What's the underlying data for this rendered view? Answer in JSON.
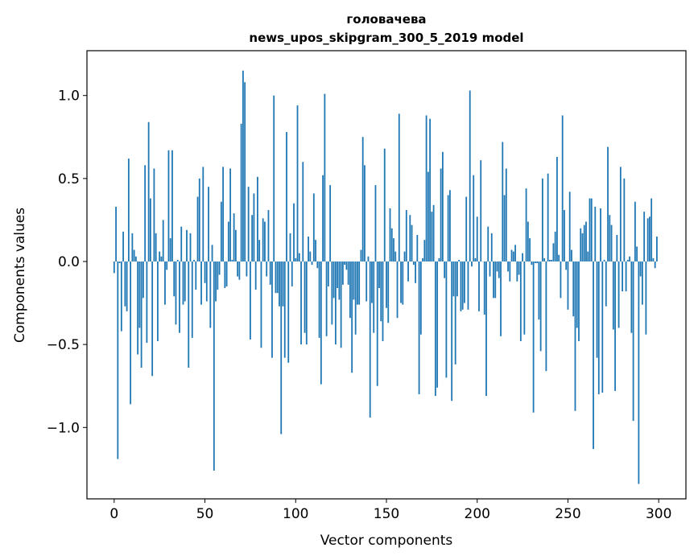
{
  "chart_data": {
    "type": "bar",
    "title_line1": "головачева",
    "title_line2": "news_upos_skipgram_300_5_2019 model",
    "xlabel": "Vector components",
    "ylabel": "Components values",
    "xlim": [
      -15,
      315
    ],
    "ylim": [
      -1.43,
      1.27
    ],
    "xticks": [
      0,
      50,
      100,
      150,
      200,
      250,
      300
    ],
    "xtick_labels": [
      "0",
      "50",
      "100",
      "150",
      "200",
      "250",
      "300"
    ],
    "yticks": [
      -1.0,
      -0.5,
      0.0,
      0.5,
      1.0
    ],
    "ytick_labels": [
      "−1.0",
      "−0.5",
      "0.0",
      "0.5",
      "1.0"
    ],
    "grid": false,
    "bar_color": "#1f77b4",
    "values": [
      -0.07,
      0.33,
      -1.19,
      -0.01,
      -0.42,
      0.18,
      -0.27,
      -0.3,
      0.62,
      -0.86,
      0.17,
      0.07,
      0.03,
      -0.56,
      -0.4,
      -0.64,
      -0.22,
      0.58,
      -0.49,
      0.84,
      0.38,
      -0.69,
      0.56,
      0.17,
      -0.48,
      0.06,
      0.03,
      0.25,
      -0.26,
      -0.05,
      0.67,
      0.14,
      0.67,
      -0.21,
      -0.38,
      0.01,
      -0.43,
      0.21,
      -0.26,
      -0.24,
      0.19,
      -0.64,
      0.17,
      -0.46,
      0.01,
      -0.17,
      0.39,
      0.5,
      -0.26,
      0.57,
      -0.13,
      -0.24,
      0.45,
      -0.4,
      0.1,
      -1.26,
      -0.24,
      -0.17,
      -0.08,
      0.36,
      0.57,
      -0.16,
      -0.15,
      0.24,
      0.56,
      0.01,
      0.29,
      0.19,
      -0.09,
      -0.11,
      0.83,
      1.15,
      1.08,
      -0.09,
      0.45,
      -0.47,
      0.28,
      0.41,
      -0.17,
      0.51,
      0.13,
      -0.52,
      0.26,
      0.24,
      -0.09,
      0.31,
      -0.14,
      -0.58,
      1.0,
      -0.19,
      -0.19,
      -0.27,
      -1.04,
      -0.27,
      -0.58,
      0.78,
      -0.61,
      0.17,
      -0.15,
      0.35,
      0.02,
      0.94,
      0.05,
      -0.5,
      0.6,
      -0.43,
      -0.5,
      0.15,
      0.06,
      -0.02,
      0.41,
      0.13,
      -0.04,
      -0.46,
      -0.74,
      0.52,
      1.01,
      -0.45,
      -0.15,
      0.46,
      -0.38,
      -0.22,
      -0.5,
      -0.16,
      -0.23,
      -0.52,
      -0.14,
      -0.02,
      -0.05,
      -0.14,
      -0.34,
      -0.67,
      -0.23,
      -0.44,
      -0.26,
      -0.26,
      0.07,
      0.75,
      0.58,
      -0.24,
      0.03,
      -0.94,
      -0.25,
      -0.43,
      0.46,
      -0.75,
      -0.16,
      -0.36,
      -0.48,
      0.68,
      -0.28,
      -0.37,
      0.32,
      0.2,
      0.14,
      0.06,
      -0.34,
      0.89,
      -0.25,
      -0.26,
      0.06,
      0.31,
      -0.12,
      0.28,
      0.22,
      -0.02,
      -0.13,
      0.16,
      -0.8,
      -0.44,
      0.02,
      0.13,
      0.88,
      0.54,
      0.86,
      0.3,
      0.34,
      -0.81,
      -0.76,
      0.02,
      0.56,
      0.66,
      -0.1,
      -0.7,
      0.4,
      0.43,
      -0.84,
      -0.21,
      -0.62,
      -0.21,
      0.01,
      -0.3,
      -0.29,
      -0.25,
      0.39,
      -0.29,
      1.03,
      -0.03,
      0.52,
      0.02,
      0.27,
      -0.3,
      0.61,
      0.0,
      -0.32,
      -0.81,
      0.21,
      -0.09,
      0.17,
      -0.22,
      -0.22,
      -0.06,
      -0.1,
      -0.45,
      0.72,
      0.4,
      0.56,
      -0.06,
      -0.12,
      0.07,
      0.06,
      0.1,
      -0.12,
      -0.08,
      -0.48,
      0.05,
      -0.44,
      0.44,
      0.24,
      0.14,
      -0.02,
      -0.91,
      -0.01,
      -0.01,
      -0.35,
      -0.54,
      0.5,
      0.02,
      -0.66,
      0.53,
      0.01,
      0.01,
      0.11,
      0.18,
      0.63,
      0.04,
      -0.22,
      0.88,
      0.31,
      -0.05,
      -0.29,
      0.42,
      0.07,
      -0.33,
      -0.9,
      -0.4,
      -0.48,
      0.2,
      0.17,
      0.22,
      0.24,
      0.06,
      0.38,
      0.38,
      -1.13,
      0.33,
      -0.58,
      -0.8,
      0.32,
      -0.79,
      0.01,
      -0.27,
      0.69,
      0.28,
      0.22,
      -0.41,
      -0.78,
      0.16,
      -0.4,
      0.57,
      -0.18,
      0.5,
      -0.18,
      0.01,
      0.03,
      -0.43,
      -0.96,
      0.36,
      0.09,
      -1.34,
      -0.09,
      -0.26,
      0.3,
      -0.44,
      0.26,
      0.27,
      0.38,
      0.02,
      -0.04,
      0.15
    ]
  }
}
